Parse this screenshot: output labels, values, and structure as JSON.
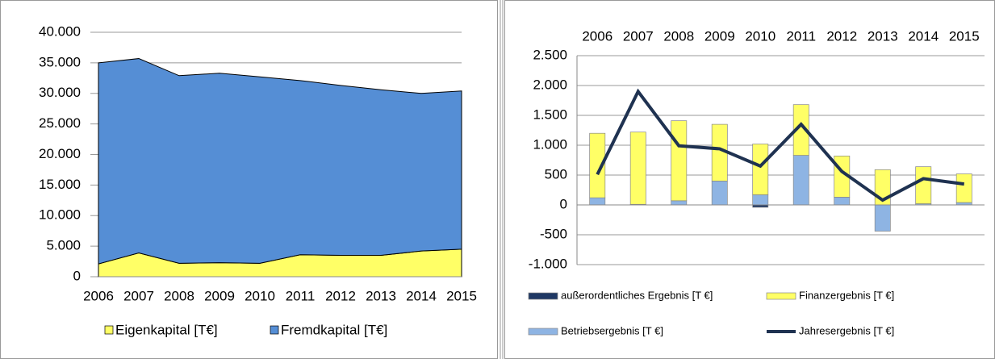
{
  "chart_data": [
    {
      "type": "area",
      "categories": [
        "2006",
        "2007",
        "2008",
        "2009",
        "2010",
        "2011",
        "2012",
        "2013",
        "2014",
        "2015"
      ],
      "series": [
        {
          "name": "Eigenkapital [T€]",
          "color": "#ffff66",
          "values": [
            2100,
            3900,
            2200,
            2300,
            2200,
            3600,
            3500,
            3500,
            4200,
            4500
          ]
        },
        {
          "name": "Fremdkapital [T€]",
          "color": "#558ed5",
          "values": [
            32900,
            31800,
            30700,
            31000,
            30500,
            28500,
            27800,
            27100,
            25800,
            25900
          ]
        }
      ],
      "stacked": true,
      "ylim": [
        0,
        40000
      ],
      "yticks": [
        0,
        {
          "value": 5000,
          "label": "5.000"
        },
        {
          "value": 10000,
          "label": "10.000"
        },
        {
          "value": 15000,
          "label": "15.000"
        },
        {
          "value": 20000,
          "label": "20.000"
        },
        {
          "value": 25000,
          "label": "25.000"
        },
        {
          "value": 30000,
          "label": "30.000"
        },
        {
          "value": 35000,
          "label": "35.000"
        },
        {
          "value": 40000,
          "label": "40.000"
        }
      ],
      "grid": true,
      "legend": "bottom"
    },
    {
      "type": "bar",
      "categories": [
        "2006",
        "2007",
        "2008",
        "2009",
        "2010",
        "2011",
        "2012",
        "2013",
        "2014",
        "2015"
      ],
      "series": [
        {
          "name": "außerordentliches Ergebnis [T €]",
          "color": "#1f3864",
          "values": [
            0,
            0,
            0,
            0,
            -40,
            0,
            0,
            0,
            0,
            0
          ]
        },
        {
          "name": "Betriebsergebnis [T €]",
          "color": "#8eb4e3",
          "values": [
            120,
            10,
            70,
            400,
            170,
            830,
            130,
            -440,
            20,
            40
          ]
        },
        {
          "name": "Finanzergebnis [T €]",
          "color": "#ffff66",
          "values": [
            1080,
            1210,
            1340,
            950,
            850,
            850,
            690,
            590,
            620,
            480
          ]
        },
        {
          "name": "Jahresergebnis [T €]",
          "color": "#1f3251",
          "type": "line",
          "values": [
            510,
            1900,
            990,
            940,
            650,
            1350,
            560,
            80,
            440,
            350
          ]
        }
      ],
      "stacked": true,
      "ylim": [
        -1000,
        2500
      ],
      "yticks": [
        {
          "value": -1000,
          "label": "-1.000"
        },
        -500,
        0,
        500,
        {
          "value": 1000,
          "label": "1.000"
        },
        {
          "value": 1500,
          "label": "1.500"
        },
        {
          "value": 2000,
          "label": "2.000"
        },
        {
          "value": 2500,
          "label": "2.500"
        }
      ],
      "grid": true,
      "legend": "bottom",
      "xaxis_position": "top"
    }
  ]
}
